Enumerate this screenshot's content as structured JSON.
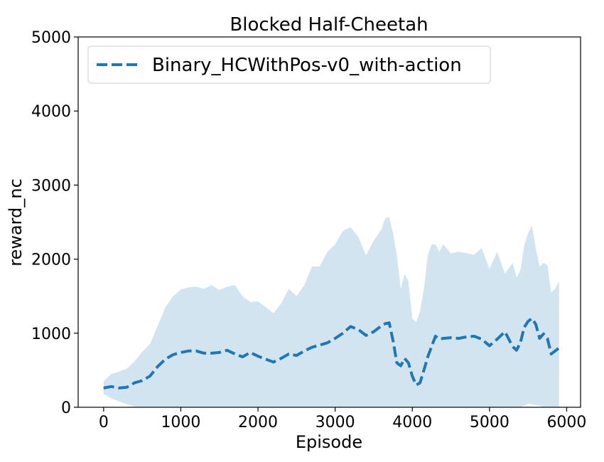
{
  "chart_data": {
    "type": "line",
    "title": "Blocked Half-Cheetah",
    "xlabel": "Episode",
    "ylabel": "reward_nc",
    "xlim": [
      -330,
      6180
    ],
    "ylim": [
      0,
      5000
    ],
    "xticks": [
      0,
      1000,
      2000,
      3000,
      4000,
      5000,
      6000
    ],
    "yticks": [
      0,
      1000,
      2000,
      3000,
      4000,
      5000
    ],
    "grid": false,
    "legend_position": "upper-left",
    "colors": {
      "line": "#1f77b4",
      "band": "#1f77b4"
    },
    "series": [
      {
        "name": "Binary_HCWithPos-v0_with-action",
        "style": "dashed",
        "x": [
          0,
          100,
          200,
          300,
          400,
          500,
          600,
          700,
          800,
          900,
          1000,
          1100,
          1200,
          1300,
          1400,
          1500,
          1600,
          1700,
          1800,
          1900,
          2000,
          2100,
          2200,
          2300,
          2400,
          2500,
          2600,
          2700,
          2800,
          2900,
          3000,
          3100,
          3200,
          3300,
          3400,
          3500,
          3600,
          3650,
          3700,
          3750,
          3800,
          3850,
          3900,
          3950,
          4000,
          4050,
          4100,
          4150,
          4200,
          4250,
          4300,
          4350,
          4400,
          4500,
          4600,
          4700,
          4800,
          4900,
          5000,
          5100,
          5200,
          5300,
          5350,
          5400,
          5450,
          5500,
          5550,
          5600,
          5650,
          5700,
          5750,
          5800,
          5850,
          5900
        ],
        "y": [
          260,
          280,
          260,
          270,
          330,
          360,
          420,
          550,
          650,
          710,
          740,
          760,
          760,
          730,
          730,
          740,
          770,
          720,
          680,
          740,
          690,
          650,
          610,
          660,
          720,
          700,
          760,
          810,
          840,
          870,
          930,
          1000,
          1090,
          1050,
          970,
          1020,
          1100,
          1130,
          1140,
          900,
          600,
          560,
          660,
          600,
          420,
          300,
          330,
          500,
          680,
          820,
          960,
          920,
          930,
          940,
          930,
          950,
          960,
          920,
          830,
          920,
          1020,
          820,
          770,
          870,
          1080,
          1160,
          1200,
          1120,
          930,
          990,
          930,
          720,
          760,
          800
        ],
        "upper": [
          350,
          450,
          480,
          520,
          620,
          750,
          850,
          1100,
          1350,
          1500,
          1590,
          1620,
          1630,
          1600,
          1650,
          1580,
          1630,
          1650,
          1500,
          1420,
          1430,
          1350,
          1270,
          1400,
          1600,
          1500,
          1650,
          1900,
          1900,
          2100,
          2200,
          2380,
          2430,
          2300,
          2050,
          2250,
          2400,
          2550,
          2570,
          2350,
          2050,
          1600,
          1800,
          1700,
          1200,
          1150,
          1300,
          1600,
          2050,
          2200,
          2200,
          2100,
          2200,
          2080,
          2100,
          2080,
          2060,
          2150,
          1870,
          2100,
          1800,
          1950,
          1750,
          1850,
          2180,
          2350,
          2450,
          2150,
          1900,
          1950,
          1920,
          1550,
          1600,
          1700
        ],
        "lower": [
          180,
          120,
          80,
          40,
          10,
          0,
          0,
          0,
          0,
          0,
          0,
          0,
          0,
          0,
          0,
          0,
          0,
          0,
          0,
          0,
          0,
          0,
          0,
          0,
          0,
          0,
          0,
          0,
          0,
          0,
          0,
          0,
          0,
          0,
          0,
          0,
          0,
          0,
          0,
          0,
          0,
          0,
          0,
          0,
          0,
          0,
          0,
          0,
          0,
          0,
          0,
          0,
          0,
          0,
          0,
          0,
          0,
          0,
          0,
          0,
          0,
          0,
          0,
          0,
          20,
          50,
          40,
          30,
          20,
          0,
          0,
          0,
          0,
          0
        ]
      }
    ]
  }
}
